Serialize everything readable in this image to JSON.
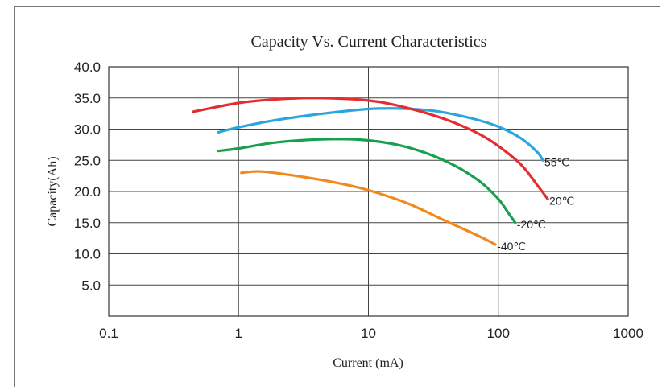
{
  "chart_data": {
    "type": "line",
    "title": "Capacity Vs. Current Characteristics",
    "xlabel": "Current (mA)",
    "ylabel": "Capacity(Ah)",
    "xscale": "log",
    "xlim": [
      0.1,
      1000
    ],
    "ylim": [
      0,
      40
    ],
    "x_ticks": [
      "0.1",
      "1",
      "10",
      "100",
      "1000"
    ],
    "y_ticks": [
      "5.0",
      "10.0",
      "15.0",
      "20.0",
      "25.0",
      "30.0",
      "35.0",
      "40.0"
    ],
    "grid": true,
    "series": [
      {
        "name": "55℃",
        "color": "#2aa6df",
        "x": [
          0.7,
          1.0,
          2.0,
          5.0,
          12.0,
          30.0,
          60.0,
          100.0,
          150.0,
          200.0,
          220.0
        ],
        "y": [
          29.5,
          30.3,
          31.5,
          32.6,
          33.3,
          33.0,
          31.8,
          30.4,
          28.5,
          26.3,
          25.0
        ]
      },
      {
        "name": "20℃",
        "color": "#e52d30",
        "x": [
          0.45,
          1.0,
          2.0,
          4.0,
          10.0,
          20.0,
          40.0,
          70.0,
          100.0,
          150.0,
          200.0,
          240.0
        ],
        "y": [
          32.8,
          34.2,
          34.8,
          35.0,
          34.6,
          33.4,
          31.5,
          29.3,
          27.3,
          24.3,
          21.0,
          18.8
        ]
      },
      {
        "name": "-20℃",
        "color": "#17a04f",
        "x": [
          0.7,
          1.0,
          2.0,
          5.0,
          10.0,
          20.0,
          40.0,
          70.0,
          100.0,
          120.0,
          135.0
        ],
        "y": [
          26.5,
          26.9,
          27.9,
          28.4,
          28.2,
          27.1,
          24.8,
          21.8,
          18.8,
          16.5,
          15.0
        ]
      },
      {
        "name": "-40℃",
        "color": "#f08a1e",
        "x": [
          1.05,
          1.5,
          3.0,
          6.0,
          10.0,
          20.0,
          40.0,
          70.0,
          95.0
        ],
        "y": [
          23.0,
          23.2,
          22.4,
          21.3,
          20.2,
          18.1,
          15.2,
          12.9,
          11.5
        ]
      }
    ]
  }
}
